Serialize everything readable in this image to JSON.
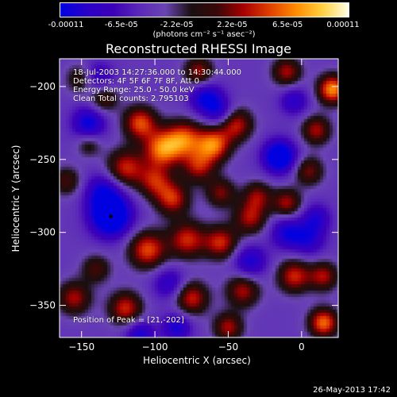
{
  "colorbar": {
    "ticks": [
      "-0.00011",
      "-6.5e-05",
      "-2.2e-05",
      "2.2e-05",
      "6.5e-05",
      "0.00011"
    ],
    "unit": "(photons cm⁻² s⁻¹ asec⁻²)",
    "colors": [
      "#0000e0",
      "#2a00c8",
      "#3c00b8",
      "#5a28b8",
      "#6a44b4",
      "#1a0f10",
      "#3a0808",
      "#a80000",
      "#e04000",
      "#ff8c00",
      "#ffd040",
      "#ffffe8"
    ]
  },
  "chart_data": {
    "type": "heatmap",
    "title": "Reconstructed RHESSI Image",
    "xlabel": "Heliocentric X (arcsec)",
    "ylabel": "Heliocentric Y (arcsec)",
    "xlim": [
      -165,
      25
    ],
    "ylim": [
      -372,
      -181
    ],
    "xticks": [
      -150,
      -100,
      -50,
      0
    ],
    "yticks": [
      -200,
      -250,
      -300,
      -350
    ],
    "zlim": [
      -0.00011,
      0.00011
    ],
    "annotations": [
      "18-Jul-2003 14:27:36.000 to 14:30:44.000",
      "Detectors: 4F 5F 6F 7F 8F, Att 0",
      "Energy Range: 25.0 - 50.0 keV",
      "Clean     Total counts: 2.795103"
    ],
    "peak_label": "Position of Peak = [21,-202]",
    "peak_position": [
      21,
      -202
    ],
    "marker_position": [
      -130,
      -289
    ],
    "blobs": [
      {
        "x": -110,
        "y": -225,
        "v": 9e-05,
        "s": 8
      },
      {
        "x": -95,
        "y": -243,
        "v": 0.0001,
        "s": 9
      },
      {
        "x": -80,
        "y": -236,
        "v": 9e-05,
        "s": 9
      },
      {
        "x": -60,
        "y": -240,
        "v": 0.0001,
        "s": 8
      },
      {
        "x": -45,
        "y": -226,
        "v": 8e-05,
        "s": 8
      },
      {
        "x": -70,
        "y": -255,
        "v": 7e-05,
        "s": 8
      },
      {
        "x": -120,
        "y": -256,
        "v": 8e-05,
        "s": 9
      },
      {
        "x": -100,
        "y": -265,
        "v": 7e-05,
        "s": 8
      },
      {
        "x": -88,
        "y": -277,
        "v": 8e-05,
        "s": 8
      },
      {
        "x": -55,
        "y": -273,
        "v": 6e-05,
        "s": 7
      },
      {
        "x": -30,
        "y": -275,
        "v": 6e-05,
        "s": 7
      },
      {
        "x": -105,
        "y": -312,
        "v": 9e-05,
        "s": 9
      },
      {
        "x": -78,
        "y": -305,
        "v": 8e-05,
        "s": 9
      },
      {
        "x": -55,
        "y": -307,
        "v": 8e-05,
        "s": 8
      },
      {
        "x": -35,
        "y": -290,
        "v": 7e-05,
        "s": 8
      },
      {
        "x": -10,
        "y": -280,
        "v": 7e-05,
        "s": 7
      },
      {
        "x": 5,
        "y": -258,
        "v": 6e-05,
        "s": 7
      },
      {
        "x": 10,
        "y": -230,
        "v": 7e-05,
        "s": 7
      },
      {
        "x": 21,
        "y": -202,
        "v": 0.00011,
        "s": 7
      },
      {
        "x": -10,
        "y": -190,
        "v": 7e-05,
        "s": 7
      },
      {
        "x": -70,
        "y": -190,
        "v": 7e-05,
        "s": 7
      },
      {
        "x": -135,
        "y": -208,
        "v": 6e-05,
        "s": 7
      },
      {
        "x": -150,
        "y": -195,
        "v": 6e-05,
        "s": 7
      },
      {
        "x": -155,
        "y": -345,
        "v": 7e-05,
        "s": 8
      },
      {
        "x": -120,
        "y": -352,
        "v": 8e-05,
        "s": 8
      },
      {
        "x": -75,
        "y": -345,
        "v": 8e-05,
        "s": 8
      },
      {
        "x": -40,
        "y": -340,
        "v": 7e-05,
        "s": 8
      },
      {
        "x": -50,
        "y": -365,
        "v": 7e-05,
        "s": 7
      },
      {
        "x": -5,
        "y": -330,
        "v": 8e-05,
        "s": 8
      },
      {
        "x": 15,
        "y": -362,
        "v": 0.0001,
        "s": 7
      },
      {
        "x": 15,
        "y": -330,
        "v": 7e-05,
        "s": 7
      },
      {
        "x": -140,
        "y": -325,
        "v": 5e-05,
        "s": 7
      },
      {
        "x": -160,
        "y": -265,
        "v": 5e-05,
        "s": 7
      },
      {
        "x": -145,
        "y": -240,
        "v": 4e-05,
        "s": 6
      },
      {
        "x": -130,
        "y": -289,
        "v": -0.00011,
        "s": 10
      },
      {
        "x": -135,
        "y": -272,
        "v": -6e-05,
        "s": 9
      },
      {
        "x": -15,
        "y": -248,
        "v": -0.0001,
        "s": 8
      },
      {
        "x": -10,
        "y": -300,
        "v": -6e-05,
        "s": 8
      },
      {
        "x": -145,
        "y": -225,
        "v": -7e-05,
        "s": 8
      },
      {
        "x": -140,
        "y": -195,
        "v": -6e-05,
        "s": 8
      },
      {
        "x": -65,
        "y": -208,
        "v": -7e-05,
        "s": 8
      },
      {
        "x": -55,
        "y": -218,
        "v": -5e-05,
        "s": 7
      },
      {
        "x": -35,
        "y": -320,
        "v": -6e-05,
        "s": 8
      },
      {
        "x": -90,
        "y": -335,
        "v": -5e-05,
        "s": 8
      },
      {
        "x": -110,
        "y": -370,
        "v": -6e-05,
        "s": 7
      },
      {
        "x": -85,
        "y": -365,
        "v": -6e-05,
        "s": 7
      },
      {
        "x": 10,
        "y": -290,
        "v": -5e-05,
        "s": 7
      },
      {
        "x": -5,
        "y": -210,
        "v": -5e-05,
        "s": 7
      },
      {
        "x": 5,
        "y": -305,
        "v": -5e-05,
        "s": 8
      }
    ]
  },
  "footer": {
    "date": "26-May-2013 17:42"
  }
}
